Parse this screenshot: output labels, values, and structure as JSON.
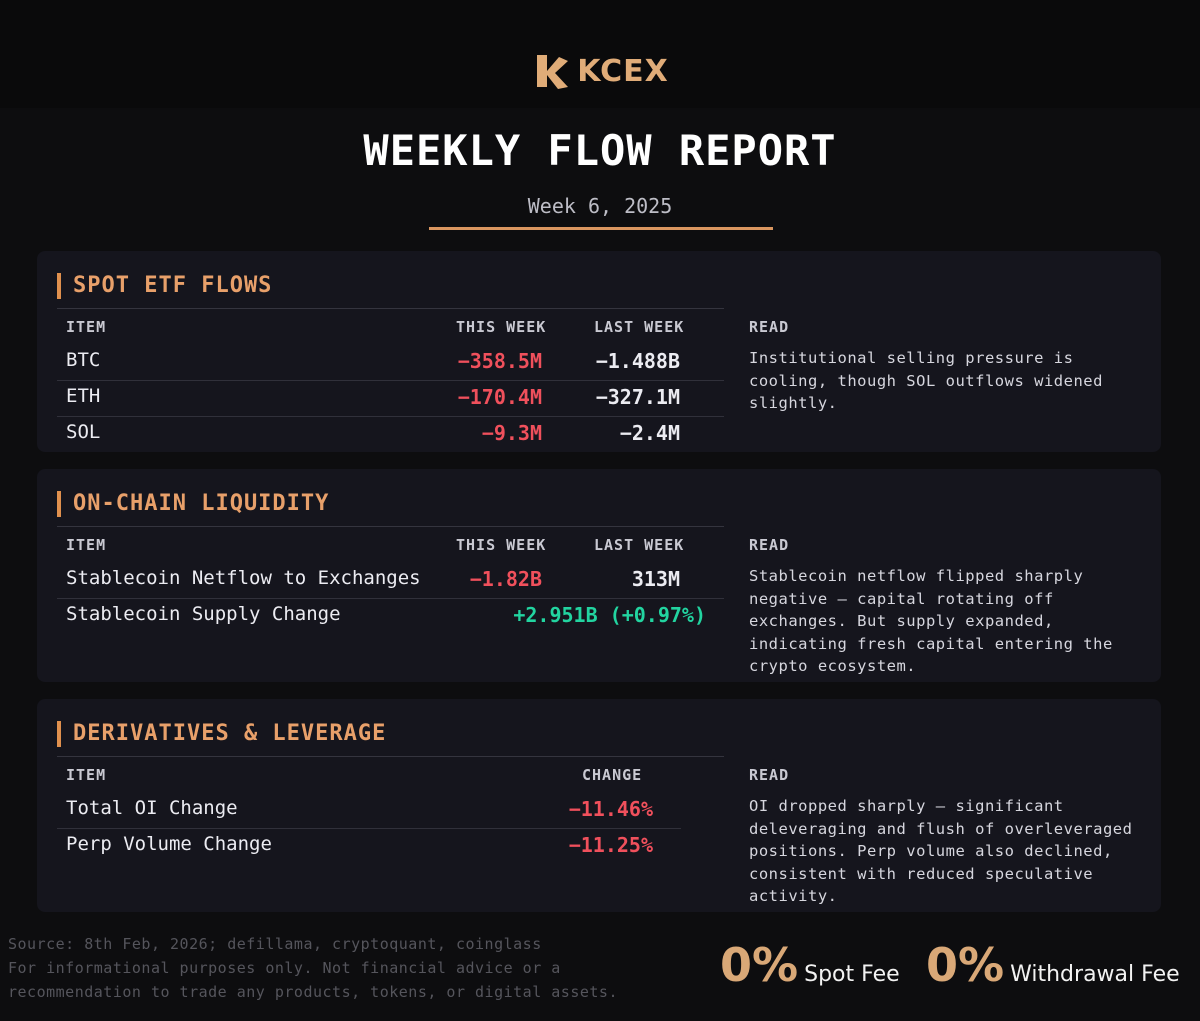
{
  "brand": {
    "name": "KCEX",
    "accent": "#e0ac78"
  },
  "header": {
    "title": "WEEKLY FLOW REPORT",
    "subtitle": "Week 6, 2025"
  },
  "spot_etf": {
    "title": "SPOT ETF FLOWS",
    "columns": {
      "item": "ITEM",
      "this_week": "THIS WEEK",
      "last_week": "LAST WEEK",
      "read": "READ"
    },
    "rows": [
      {
        "item": "BTC",
        "this_week": "−358.5M",
        "last_week": "−1.488B"
      },
      {
        "item": "ETH",
        "this_week": "−170.4M",
        "last_week": "−327.1M"
      },
      {
        "item": "SOL",
        "this_week": "−9.3M",
        "last_week": "−2.4M"
      }
    ],
    "read": "Institutional selling pressure is cooling, though SOL outflows widened slightly."
  },
  "onchain": {
    "title": "ON-CHAIN LIQUIDITY",
    "columns": {
      "item": "ITEM",
      "this_week": "THIS WEEK",
      "last_week": "LAST WEEK",
      "read": "READ"
    },
    "rows": [
      {
        "item": "Stablecoin Netflow to Exchanges",
        "this_week": "−1.82B",
        "last_week": "313M"
      },
      {
        "item": "Stablecoin Supply Change",
        "combined": "+2.951B (+0.97%)"
      }
    ],
    "read": "Stablecoin netflow flipped sharply negative — capital rotating off exchanges. But supply expanded, indicating fresh capital entering the crypto ecosystem."
  },
  "derivatives": {
    "title": "DERIVATIVES & LEVERAGE",
    "columns": {
      "item": "ITEM",
      "change": "CHANGE",
      "read": "READ"
    },
    "rows": [
      {
        "item": "Total OI Change",
        "change": "−11.46%"
      },
      {
        "item": "Perp Volume Change",
        "change": "−11.25%"
      }
    ],
    "read": "OI dropped sharply — significant deleveraging and flush of overleveraged positions. Perp volume also declined, consistent with reduced speculative activity."
  },
  "footer": {
    "source": "Source: 8th Feb, 2026; defillama, cryptoquant, coinglass",
    "disclaimer": "For informational purposes only. Not financial advice or a recommendation to trade any products, tokens, or digital assets.",
    "fees": [
      {
        "pct": "0%",
        "label": "Spot Fee"
      },
      {
        "pct": "0%",
        "label": "Withdrawal Fee"
      }
    ]
  },
  "colors": {
    "negative": "#f0505c",
    "positive": "#22d4a0",
    "section_title": "#e8a06a"
  }
}
